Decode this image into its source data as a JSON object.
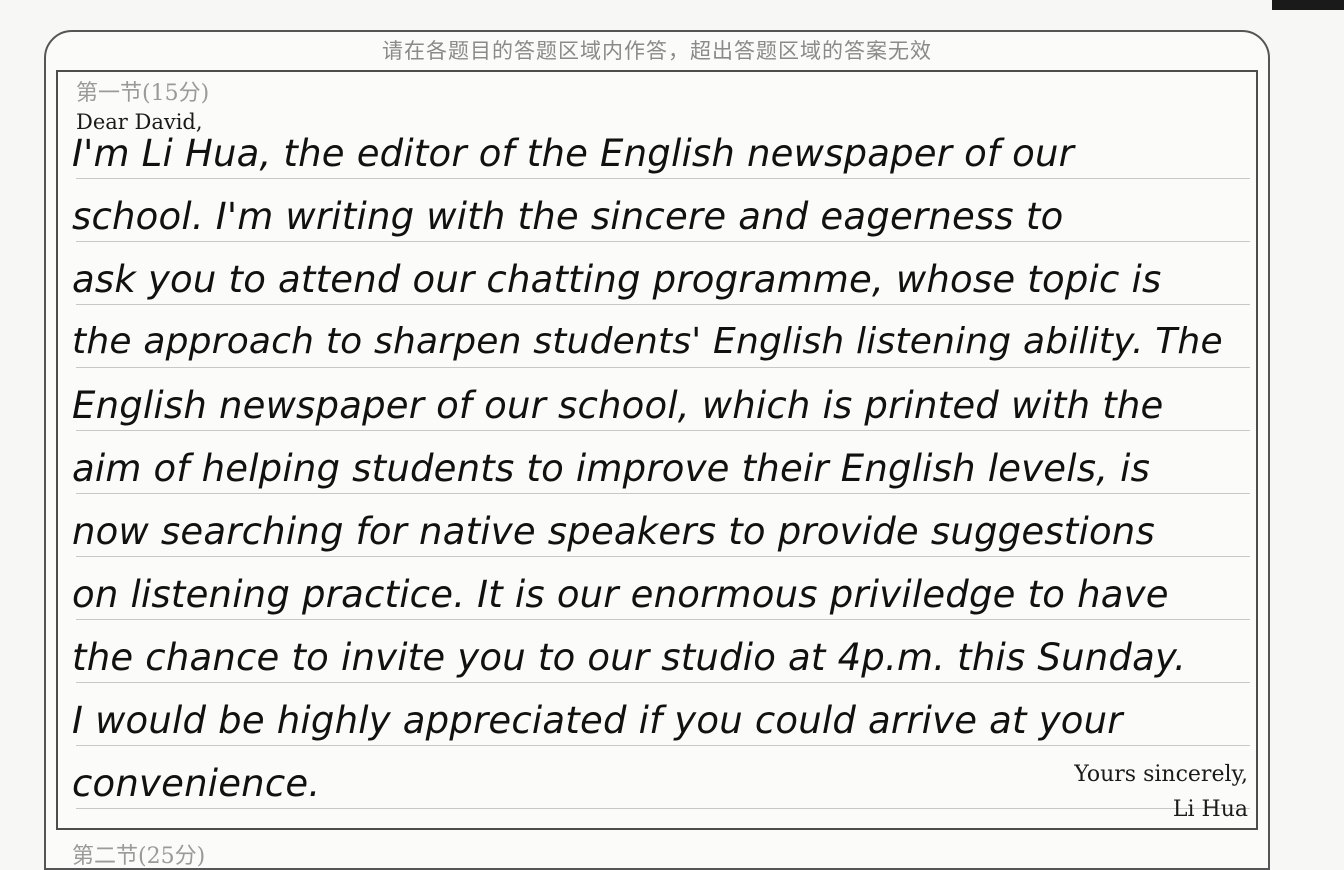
{
  "header": {
    "notice": "请在各题目的答题区域内作答，超出答题区域的答案无效"
  },
  "section": {
    "label": "第一节(15分)",
    "next_label": "第二节(25分)"
  },
  "letter": {
    "salutation": "Dear David,",
    "lines": [
      "I'm Li Hua, the editor of the English newspaper of our",
      "school. I'm writing with the sincere and eagerness to",
      "ask you to attend our chatting programme, whose topic is",
      "the approach to sharpen students' English listening ability. The",
      "English newspaper of our school, which is printed with the",
      "aim of helping students to improve their English levels, is",
      "now searching for native speakers to provide suggestions",
      "on listening practice. It is our enormous priviledge to have",
      "the chance to invite you to our studio at 4p.m. this Sunday.",
      "I would be highly appreciated if you could arrive at your",
      "convenience."
    ],
    "closing": "Yours sincerely,",
    "signature": "Li Hua"
  }
}
